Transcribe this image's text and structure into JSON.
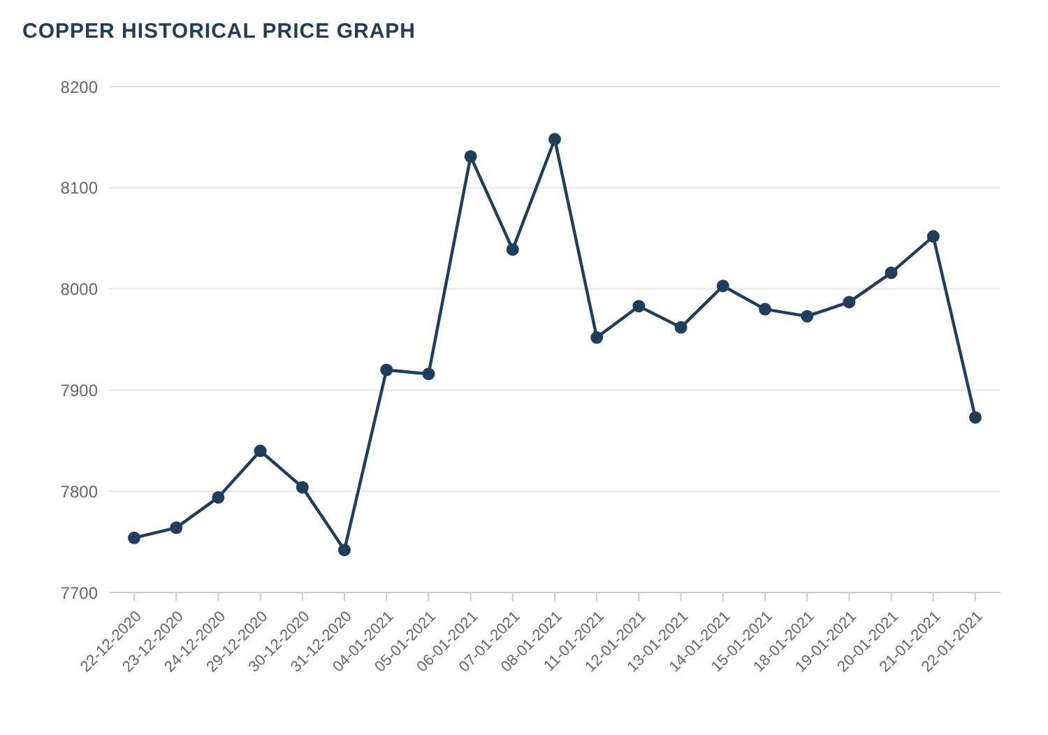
{
  "chart_data": {
    "type": "line",
    "title": "COPPER HISTORICAL PRICE GRAPH",
    "categories": [
      "22-12-2020",
      "23-12-2020",
      "24-12-2020",
      "29-12-2020",
      "30-12-2020",
      "31-12-2020",
      "04-01-2021",
      "05-01-2021",
      "06-01-2021",
      "07-01-2021",
      "08-01-2021",
      "11-01-2021",
      "12-01-2021",
      "13-01-2021",
      "14-01-2021",
      "15-01-2021",
      "18-01-2021",
      "19-01-2021",
      "20-01-2021",
      "21-01-2021",
      "22-01-2021"
    ],
    "series": [
      {
        "color": "#1f3d5c",
        "values": [
          7754,
          7764,
          7794,
          7840,
          7804,
          7742,
          7920,
          7916,
          8131,
          8039,
          8148,
          7952,
          7983,
          7962,
          8003,
          7980,
          7973,
          7987,
          8016,
          8052,
          7873
        ]
      }
    ],
    "ylim": [
      7700,
      8200
    ],
    "yticks": [
      7700,
      7800,
      7900,
      8000,
      8100,
      8200
    ],
    "grid": "y",
    "marker": "circle",
    "line_style": "solid",
    "legend": false
  }
}
